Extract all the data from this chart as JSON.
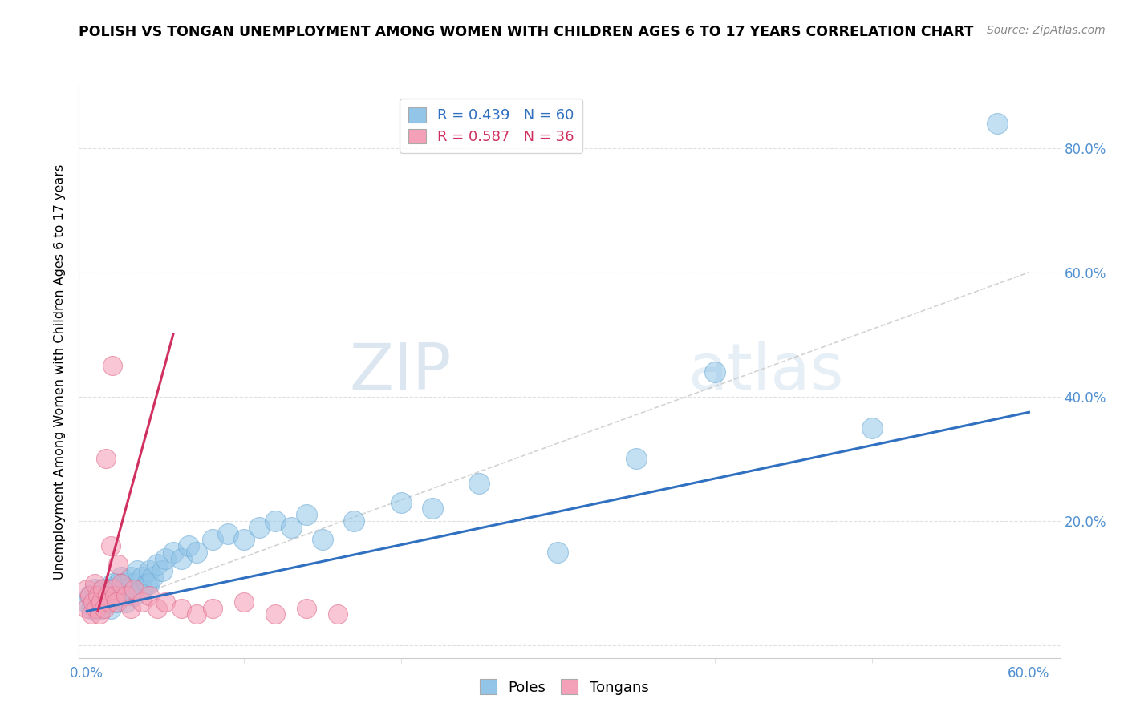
{
  "title": "POLISH VS TONGAN UNEMPLOYMENT AMONG WOMEN WITH CHILDREN AGES 6 TO 17 YEARS CORRELATION CHART",
  "source": "Source: ZipAtlas.com",
  "ylabel": "Unemployment Among Women with Children Ages 6 to 17 years",
  "xlim": [
    -0.005,
    0.62
  ],
  "ylim": [
    -0.02,
    0.9
  ],
  "legend_poles": "R = 0.439   N = 60",
  "legend_tongans": "R = 0.587   N = 36",
  "poles_color": "#92C5E8",
  "tongans_color": "#F4A0B8",
  "poles_edge_color": "#6AAAD4",
  "tongans_edge_color": "#E07090",
  "poles_line_color": "#3070C0",
  "tongans_line_color": "#D03060",
  "diag_color": "#C8C8C8",
  "watermark_color": "#C8D8E8",
  "tick_label_color": "#5090D0",
  "poles_x": [
    0.0,
    0.002,
    0.003,
    0.005,
    0.005,
    0.007,
    0.008,
    0.009,
    0.01,
    0.01,
    0.012,
    0.013,
    0.014,
    0.015,
    0.015,
    0.016,
    0.017,
    0.018,
    0.019,
    0.02,
    0.02,
    0.022,
    0.023,
    0.025,
    0.025,
    0.027,
    0.028,
    0.03,
    0.03,
    0.032,
    0.035,
    0.035,
    0.038,
    0.04,
    0.04,
    0.042,
    0.045,
    0.048,
    0.05,
    0.055,
    0.06,
    0.065,
    0.07,
    0.08,
    0.09,
    0.1,
    0.11,
    0.12,
    0.13,
    0.14,
    0.15,
    0.17,
    0.2,
    0.22,
    0.25,
    0.3,
    0.35,
    0.4,
    0.5,
    0.58
  ],
  "poles_y": [
    0.07,
    0.08,
    0.06,
    0.09,
    0.06,
    0.07,
    0.08,
    0.06,
    0.09,
    0.07,
    0.08,
    0.07,
    0.09,
    0.08,
    0.06,
    0.1,
    0.08,
    0.09,
    0.07,
    0.1,
    0.08,
    0.11,
    0.09,
    0.1,
    0.07,
    0.09,
    0.11,
    0.1,
    0.08,
    0.12,
    0.11,
    0.09,
    0.1,
    0.12,
    0.1,
    0.11,
    0.13,
    0.12,
    0.14,
    0.15,
    0.14,
    0.16,
    0.15,
    0.17,
    0.18,
    0.17,
    0.19,
    0.2,
    0.19,
    0.21,
    0.17,
    0.2,
    0.23,
    0.22,
    0.26,
    0.15,
    0.3,
    0.44,
    0.35,
    0.84
  ],
  "tongans_x": [
    0.0,
    0.0,
    0.002,
    0.003,
    0.004,
    0.005,
    0.006,
    0.007,
    0.008,
    0.009,
    0.01,
    0.011,
    0.012,
    0.013,
    0.014,
    0.015,
    0.016,
    0.017,
    0.018,
    0.019,
    0.02,
    0.022,
    0.025,
    0.028,
    0.03,
    0.035,
    0.04,
    0.045,
    0.05,
    0.06,
    0.07,
    0.08,
    0.1,
    0.12,
    0.14,
    0.16
  ],
  "tongans_y": [
    0.06,
    0.09,
    0.08,
    0.05,
    0.07,
    0.1,
    0.06,
    0.08,
    0.05,
    0.07,
    0.09,
    0.06,
    0.3,
    0.08,
    0.07,
    0.16,
    0.45,
    0.09,
    0.08,
    0.07,
    0.13,
    0.1,
    0.08,
    0.06,
    0.09,
    0.07,
    0.08,
    0.06,
    0.07,
    0.06,
    0.05,
    0.06,
    0.07,
    0.05,
    0.06,
    0.05
  ],
  "poles_line": [
    0.0,
    0.6,
    0.055,
    0.375
  ],
  "tongans_line": [
    0.007,
    0.055,
    0.055,
    0.5
  ],
  "diag_line": [
    0.005,
    0.6,
    0.055,
    0.6
  ]
}
